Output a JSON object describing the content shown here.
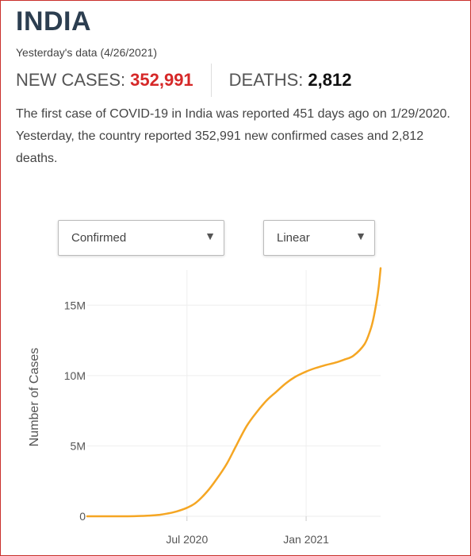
{
  "header": {
    "title": "INDIA",
    "subtitle": "Yesterday's data (4/26/2021)",
    "new_cases_label": "NEW CASES:",
    "new_cases_value": "352,991",
    "deaths_label": "DEATHS:",
    "deaths_value": "2,812"
  },
  "summary": {
    "part1": "The first case of ",
    "highlight": "COVID-19",
    "part2": " in India was reported 451 days ago on 1/29/2020. Yesterday, the country reported 352,991 new confirmed cases and 2,812 deaths."
  },
  "controls": {
    "metric_select": {
      "value": "Confirmed",
      "icon": "chevron-down-icon"
    },
    "scale_select": {
      "value": "Linear",
      "icon": "chevron-down-icon"
    }
  },
  "colors": {
    "accent": "#d62828",
    "line": "#f5a623",
    "title": "#2c3e50"
  },
  "chart_data": {
    "type": "line",
    "title": "",
    "xlabel": "",
    "ylabel": "Number of Cases",
    "x_tick_labels": [
      "Jul 2020",
      "Jan 2021"
    ],
    "y_tick_labels": [
      "0",
      "5M",
      "10M",
      "15M"
    ],
    "ylim": [
      0,
      17500000
    ],
    "grid": true,
    "series": [
      {
        "values": [
          {
            "x": "2020-01-29",
            "y": 1
          },
          {
            "x": "2020-03-01",
            "y": 3
          },
          {
            "x": "2020-04-01",
            "y": 1998
          },
          {
            "x": "2020-05-01",
            "y": 37257
          },
          {
            "x": "2020-05-20",
            "y": 110000
          },
          {
            "x": "2020-06-01",
            "y": 198706
          },
          {
            "x": "2020-06-15",
            "y": 343091
          },
          {
            "x": "2020-07-01",
            "y": 604641
          },
          {
            "x": "2020-07-15",
            "y": 968876
          },
          {
            "x": "2020-08-01",
            "y": 1750723
          },
          {
            "x": "2020-08-15",
            "y": 2589682
          },
          {
            "x": "2020-09-01",
            "y": 3769523
          },
          {
            "x": "2020-09-15",
            "y": 5020359
          },
          {
            "x": "2020-10-01",
            "y": 6394068
          },
          {
            "x": "2020-10-15",
            "y": 7307097
          },
          {
            "x": "2020-11-01",
            "y": 8229313
          },
          {
            "x": "2020-11-15",
            "y": 8814579
          },
          {
            "x": "2020-12-01",
            "y": 9462809
          },
          {
            "x": "2020-12-15",
            "y": 9906165
          },
          {
            "x": "2021-01-01",
            "y": 10286709
          },
          {
            "x": "2021-01-15",
            "y": 10527683
          },
          {
            "x": "2021-02-01",
            "y": 10757610
          },
          {
            "x": "2021-02-15",
            "y": 10916589
          },
          {
            "x": "2021-03-01",
            "y": 11139516
          },
          {
            "x": "2021-03-15",
            "y": 11409831
          },
          {
            "x": "2021-04-01",
            "y": 12221665
          },
          {
            "x": "2021-04-10",
            "y": 13205926
          },
          {
            "x": "2021-04-15",
            "y": 14074564
          },
          {
            "x": "2021-04-20",
            "y": 15321089
          },
          {
            "x": "2021-04-23",
            "y": 16263695
          },
          {
            "x": "2021-04-26",
            "y": 17636307
          }
        ]
      }
    ]
  }
}
